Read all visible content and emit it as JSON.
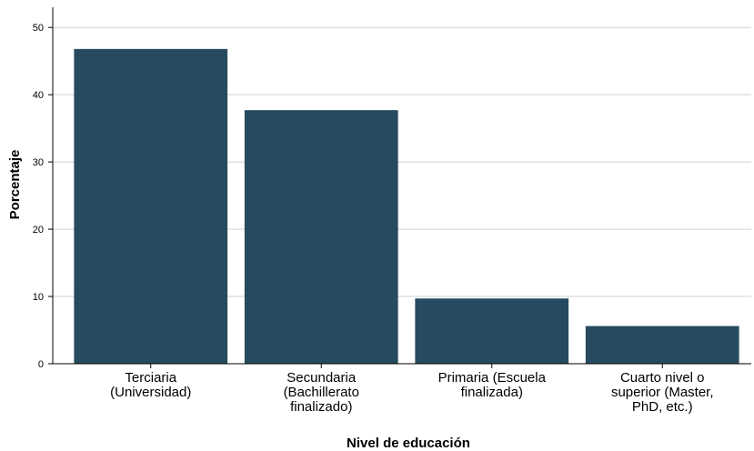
{
  "chart_data": {
    "type": "bar",
    "categories": [
      [
        "Terciaria",
        "(Universidad)"
      ],
      [
        "Secundaria",
        "(Bachillerato",
        "finalizado)"
      ],
      [
        "Primaria (Escuela",
        "finalizada)"
      ],
      [
        "Cuarto nivel o",
        "superior (Master,",
        "PhD, etc.)"
      ]
    ],
    "values": [
      46.8,
      37.7,
      9.7,
      5.6
    ],
    "xlabel": "Nivel de educación",
    "ylabel": "Porcentaje",
    "ylim": [
      0,
      53
    ],
    "yticks": [
      0,
      10,
      20,
      30,
      40,
      50
    ],
    "grid": "horizontal",
    "legend": "none",
    "colors": {
      "bar": "#264a5f",
      "grid": "#d0d0d0",
      "axis": "#000000"
    }
  }
}
